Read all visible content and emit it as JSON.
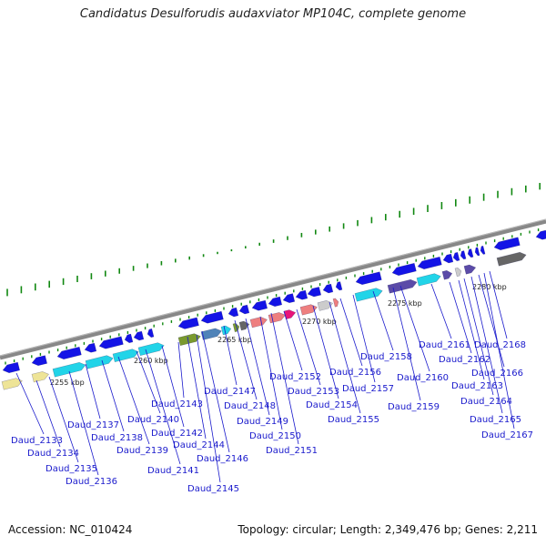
{
  "title": "Candidatus Desulforudis audaxviator MP104C, complete genome",
  "footer": {
    "accession": "Accession: NC_010424",
    "topology": "Topology: circular; Length: 2,349,476 bp; Genes: 2,211"
  },
  "scale_labels": [
    "2255 kbp",
    "2260 kbp",
    "2265 kbp",
    "2270 kbp",
    "2275 kbp",
    "2280 kbp"
  ],
  "colors": {
    "gene_forward": "#1414e6",
    "backbone": "#888888",
    "gc_ticks": "#118811",
    "label_lines": "#1a1acc",
    "cog_cyan": "#22d4e8",
    "cog_yellow": "#eee497",
    "cog_olive": "#7a9a2e",
    "cog_steelblue": "#4f83b8",
    "cog_salmon": "#ee7f7f",
    "cog_magenta": "#e8157a",
    "cog_gray": "#cccccc",
    "cog_darkgray": "#666666",
    "cog_slate": "#5b4ba8"
  },
  "gene_labels": [
    "Daud_2133",
    "Daud_2134",
    "Daud_2135",
    "Daud_2136",
    "Daud_2137",
    "Daud_2138",
    "Daud_2139",
    "Daud_2140",
    "Daud_2141",
    "Daud_2142",
    "Daud_2143",
    "Daud_2144",
    "Daud_2145",
    "Daud_2146",
    "Daud_2147",
    "Daud_2148",
    "Daud_2149",
    "Daud_2150",
    "Daud_2151",
    "Daud_2152",
    "Daud_2153",
    "Daud_2154",
    "Daud_2155",
    "Daud_2156",
    "Daud_2157",
    "Daud_2158",
    "Daud_2159",
    "Daud_2160",
    "Daud_2161",
    "Daud_2162",
    "Daud_2163",
    "Daud_2164",
    "Daud_2165",
    "Daud_2166",
    "Daud_2167",
    "Daud_2168"
  ]
}
